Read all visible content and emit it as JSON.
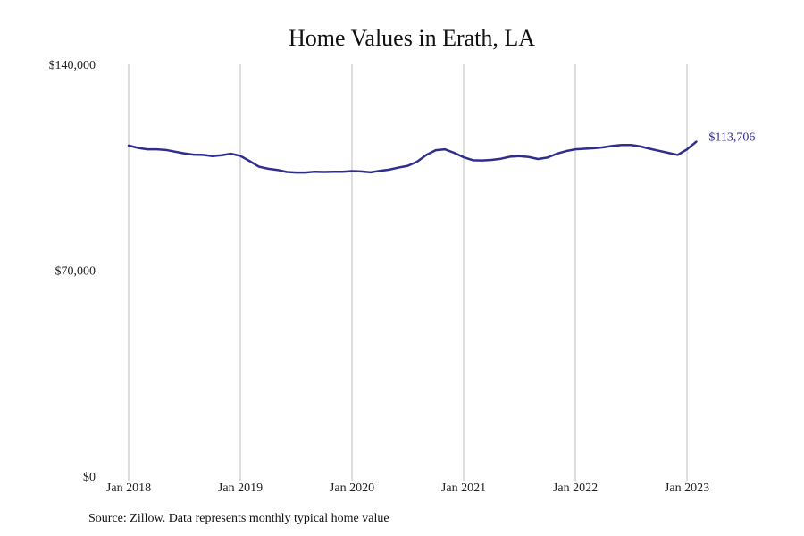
{
  "chart_data": {
    "type": "line",
    "title": "Home Values in Erath, LA",
    "xlabel": "",
    "ylabel": "",
    "x_start": "2018-01",
    "x_end": "2023-02",
    "xlim": [
      "2018-01",
      "2023-03"
    ],
    "ylim": [
      0,
      140000
    ],
    "y_ticks": [
      0,
      70000,
      140000
    ],
    "y_tick_labels": [
      "$0",
      "$70,000",
      "$140,000"
    ],
    "x_ticks": [
      "2018-01",
      "2019-01",
      "2020-01",
      "2021-01",
      "2022-01",
      "2023-01"
    ],
    "x_tick_labels": [
      "Jan 2018",
      "Jan 2019",
      "Jan 2020",
      "Jan 2021",
      "Jan 2022",
      "Jan 2023"
    ],
    "grid": "vertical",
    "line_color": "#2e2e8f",
    "series": [
      {
        "values": [
          112400,
          111600,
          111100,
          111100,
          110900,
          110300,
          109700,
          109300,
          109200,
          108800,
          109100,
          109600,
          108900,
          107100,
          105200,
          104500,
          104100,
          103400,
          103200,
          103200,
          103500,
          103400,
          103500,
          103500,
          103700,
          103600,
          103300,
          103800,
          104200,
          104900,
          105500,
          106900,
          109200,
          110800,
          111100,
          109900,
          108400,
          107400,
          107300,
          107500,
          107900,
          108600,
          108800,
          108500,
          107800,
          108300,
          109600,
          110500,
          111100,
          111300,
          111500,
          111800,
          112300,
          112600,
          112600,
          112100,
          111300,
          110600,
          109900,
          109200,
          111100,
          113706
        ]
      }
    ],
    "end_label": "$113,706"
  },
  "footer": {
    "source": "Source: Zillow. Data represents monthly typical home value"
  }
}
